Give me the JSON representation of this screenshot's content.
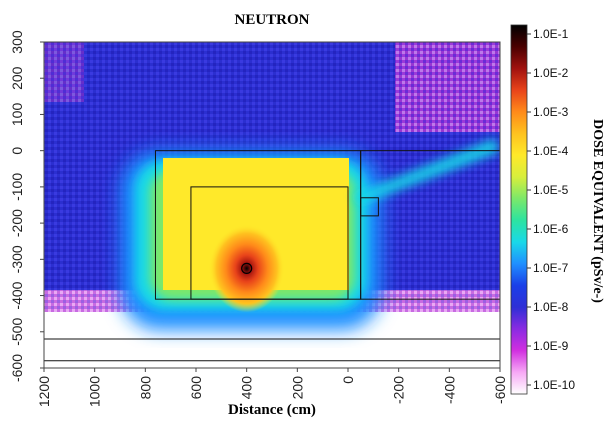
{
  "chart_data": {
    "type": "heatmap",
    "title": "NEUTRON",
    "xlabel": "Distance (cm)",
    "ylabel": "",
    "colorbar_label": "DOSE EQUIVALENT (pSv/e-)",
    "xlim": [
      1200,
      -600
    ],
    "ylim": [
      -600,
      300
    ],
    "x_ticks": [
      1200,
      1000,
      800,
      600,
      400,
      200,
      0,
      -200,
      -400,
      -600
    ],
    "x_tick_labels": [
      "1200",
      "1000",
      "800",
      "600",
      "400",
      "200",
      "0",
      "-200",
      "-400",
      "-600"
    ],
    "y_ticks": [
      300,
      200,
      100,
      0,
      -100,
      -200,
      -300,
      -400,
      -500,
      -600
    ],
    "y_tick_labels": [
      "300",
      "200",
      "100",
      "0",
      "-100",
      "-200",
      "-300",
      "-400",
      "-500",
      "-600"
    ],
    "colorbar_scale": "log",
    "colorbar_range": [
      1e-10,
      0.1
    ],
    "colorbar_ticks": [
      "1.0E-1",
      "1.0E-2",
      "1.0E-3",
      "1.0E-4",
      "1.0E-5",
      "1.0E-6",
      "1.0E-7",
      "1.0E-8",
      "1.0E-9",
      "1.0E-10"
    ],
    "colormap": [
      "#ffffff",
      "#f7a8f5",
      "#d12fe0",
      "#8a2be2",
      "#2f2fd6",
      "#1a3fe8",
      "#1f8fff",
      "#19d9e8",
      "#2de3a0",
      "#7be86a",
      "#d7ee3c",
      "#ffe92a",
      "#ffc21f",
      "#ff8a1a",
      "#e8431a",
      "#a1120f",
      "#4a0000",
      "#000000"
    ],
    "source_position": [
      400,
      -325
    ],
    "peak_dose": 0.1,
    "geometry_outlines": [
      {
        "name": "inner-room",
        "x": [
          620,
          0
        ],
        "y": [
          -100,
          -410
        ]
      },
      {
        "name": "outer-shield",
        "x": [
          760,
          -50
        ],
        "y": [
          0,
          -410
        ]
      },
      {
        "name": "right-room",
        "x": [
          -50,
          -600
        ],
        "y": [
          0,
          -410
        ]
      },
      {
        "name": "duct-box",
        "x": [
          -50,
          -120
        ],
        "y": [
          -130,
          -180
        ]
      },
      {
        "name": "floor-lines",
        "y": [
          -520,
          -580,
          -600
        ]
      }
    ]
  }
}
